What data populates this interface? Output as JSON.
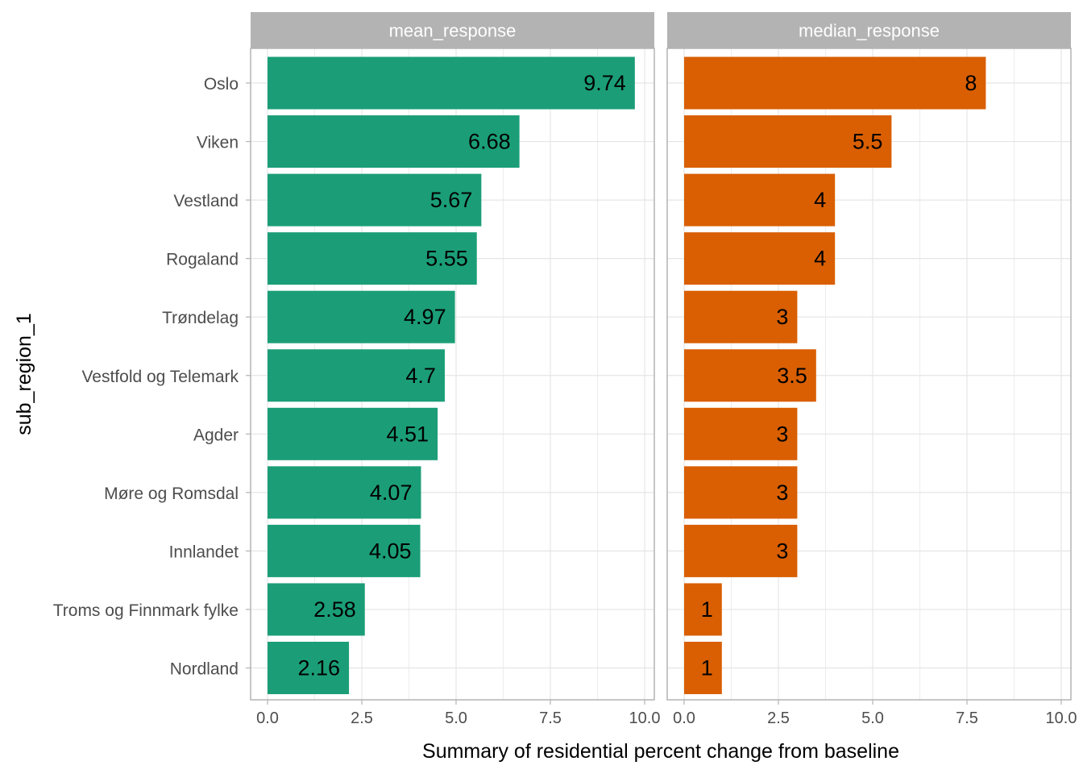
{
  "chart_data": {
    "type": "bar",
    "orientation": "horizontal",
    "faceted": true,
    "ylabel": "sub_region_1",
    "xlabel": "Summary of residential percent change from baseline",
    "categories": [
      "Oslo",
      "Viken",
      "Vestland",
      "Rogaland",
      "Trøndelag",
      "Vestfold og Telemark",
      "Agder",
      "Møre og Romsdal",
      "Innlandet",
      "Troms og Finnmark fylke",
      "Nordland"
    ],
    "xlim": [
      0,
      10
    ],
    "x_ticks": [
      "0.0",
      "2.5",
      "5.0",
      "7.5",
      "10.0"
    ],
    "grid": true,
    "panels": [
      {
        "name": "mean_response",
        "color": "#1b9e77",
        "values": [
          9.74,
          6.68,
          5.67,
          5.55,
          4.97,
          4.7,
          4.51,
          4.07,
          4.05,
          2.58,
          2.16
        ],
        "labels": [
          "9.74",
          "6.68",
          "5.67",
          "5.55",
          "4.97",
          "4.7",
          "4.51",
          "4.07",
          "4.05",
          "2.58",
          "2.16"
        ]
      },
      {
        "name": "median_response",
        "color": "#d95f02",
        "values": [
          8,
          5.5,
          4,
          4,
          3,
          3.5,
          3,
          3,
          3,
          1,
          1
        ],
        "labels": [
          "8",
          "5.5",
          "4",
          "4",
          "3",
          "3.5",
          "3",
          "3",
          "3",
          "1",
          "1"
        ]
      }
    ]
  }
}
